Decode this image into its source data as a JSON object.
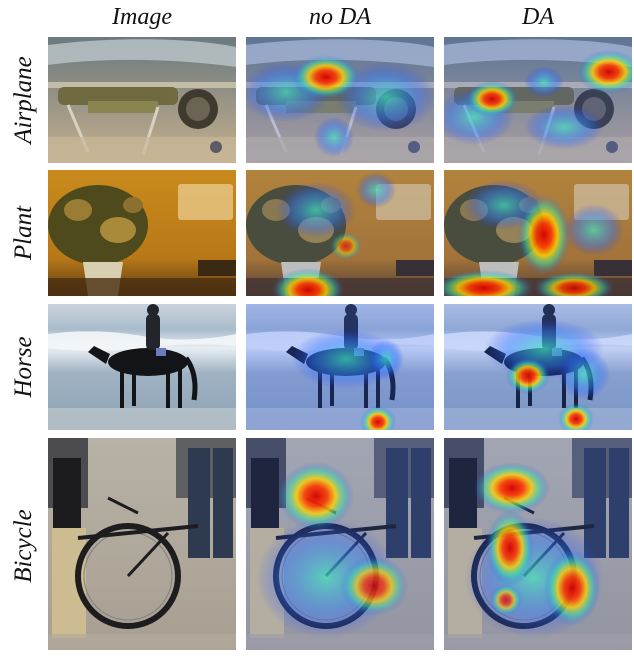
{
  "columns": [
    "Image",
    "no DA",
    "DA"
  ],
  "rows": [
    "Airplane",
    "Plant",
    "Horse",
    "Bicycle"
  ]
}
